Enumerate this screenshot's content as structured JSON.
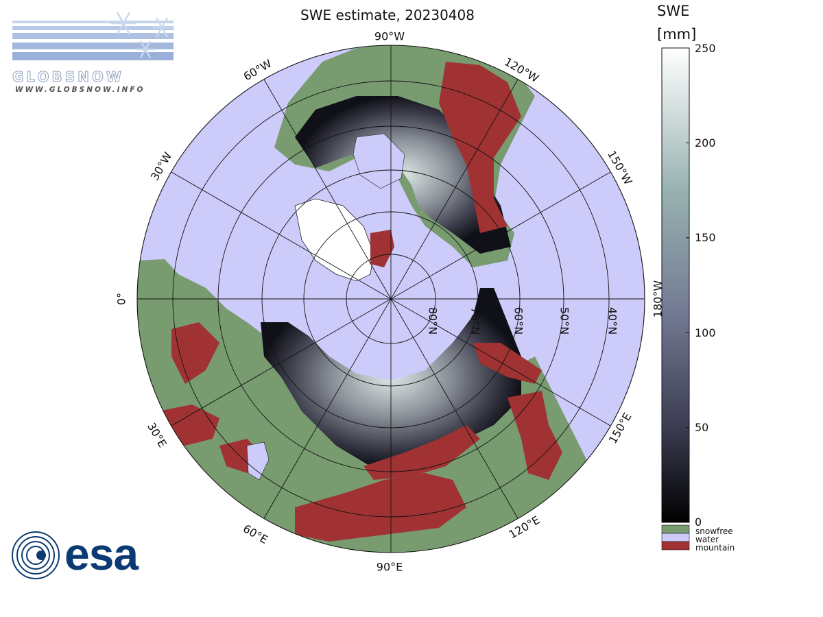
{
  "title": "SWE estimate, 20230408",
  "colors": {
    "water": "#cccbf9",
    "snowfree": "#789b70",
    "mountain": "#a03233",
    "swe_low": "#000000",
    "swe_high": "#ffffff"
  },
  "logos": {
    "globsnow_name": "GLOBSNOW",
    "globsnow_url": "WWW.GLOBSNOW.INFO",
    "globsnow_icon": "snowflake-icon",
    "esa_name": "esa",
    "esa_icon": "esa-swirl-icon"
  },
  "map": {
    "projection": "north-polar-stereographic",
    "longitude_labels": [
      "0°",
      "30°E",
      "60°E",
      "90°E",
      "120°E",
      "150°E",
      "180°W",
      "150°W",
      "120°W",
      "90°W",
      "60°W",
      "30°W"
    ],
    "latitude_labels": [
      "80°N",
      "70°N",
      "60°N",
      "50°N",
      "40°N"
    ]
  },
  "colorbar": {
    "title_line1": "SWE",
    "title_line2": "[mm]",
    "ticks": [
      "250",
      "200",
      "150",
      "100",
      "50",
      "0"
    ],
    "range": [
      0,
      250
    ],
    "categories": [
      {
        "label": "snowfree",
        "color": "#789b70"
      },
      {
        "label": "water",
        "color": "#cccbf9"
      },
      {
        "label": "mountain",
        "color": "#a03233"
      }
    ]
  }
}
